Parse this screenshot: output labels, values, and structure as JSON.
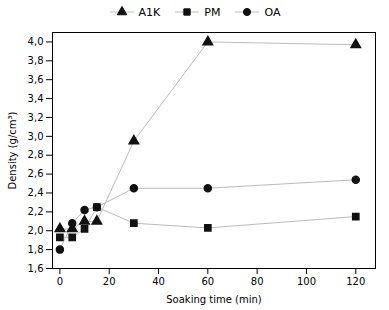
{
  "chart_data": {
    "type": "line",
    "xlabel": "Soaking time (min)",
    "ylabel": "Density (g/cm³)",
    "xlim": [
      -3,
      128
    ],
    "ylim": [
      1.6,
      4.1
    ],
    "xticks": [
      0,
      20,
      40,
      60,
      80,
      100,
      120
    ],
    "yticks": [
      {
        "value": 1.6,
        "label": "1,6"
      },
      {
        "value": 1.8,
        "label": "1,8"
      },
      {
        "value": 2.0,
        "label": "2,0"
      },
      {
        "value": 2.2,
        "label": "2,2"
      },
      {
        "value": 2.4,
        "label": "2,4"
      },
      {
        "value": 2.6,
        "label": "2,6"
      },
      {
        "value": 2.8,
        "label": "2,8"
      },
      {
        "value": 3.0,
        "label": "3,0"
      },
      {
        "value": 3.2,
        "label": "3,2"
      },
      {
        "value": 3.4,
        "label": "3,4"
      },
      {
        "value": 3.6,
        "label": "3,6"
      },
      {
        "value": 3.8,
        "label": "3,8"
      },
      {
        "value": 4.0,
        "label": "4,0"
      }
    ],
    "x": [
      0,
      5,
      10,
      15,
      30,
      60,
      120
    ],
    "color": "#bbbbbb",
    "legend": "top",
    "series": [
      {
        "name": "A1K",
        "values": [
          2.02,
          2.02,
          2.1,
          2.1,
          2.95,
          4.0,
          3.97
        ],
        "marker": "triangle",
        "color": "#111111"
      },
      {
        "name": "PM",
        "values": [
          1.93,
          1.93,
          2.02,
          2.25,
          2.08,
          2.03,
          2.15
        ],
        "marker": "square",
        "color": "#111111"
      },
      {
        "name": "OA",
        "values": [
          1.8,
          2.08,
          2.22,
          2.25,
          2.45,
          2.45,
          2.54
        ],
        "marker": "circle",
        "color": "#111111"
      }
    ]
  }
}
